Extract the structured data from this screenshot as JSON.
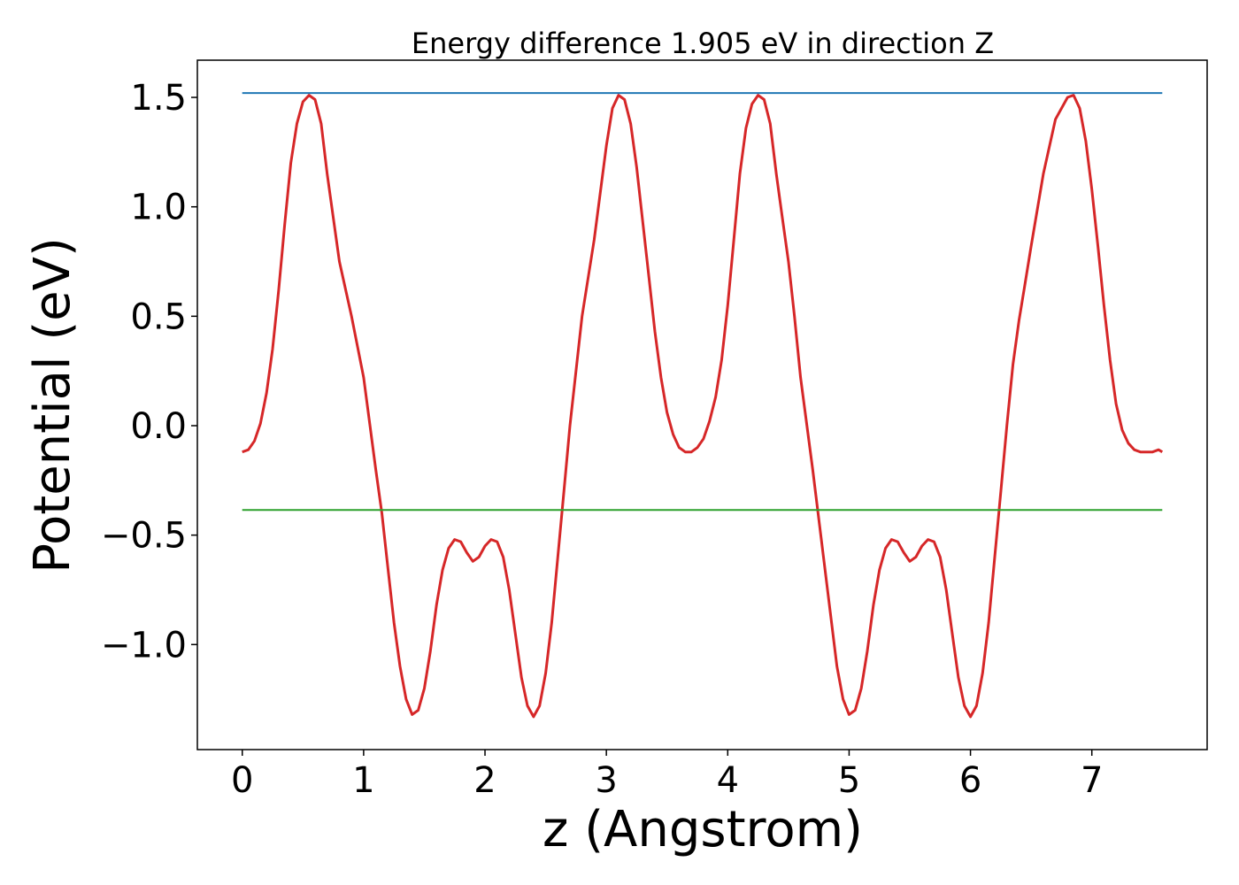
{
  "chart_data": {
    "type": "line",
    "title": "Energy difference 1.905 eV in direction Z",
    "xlabel": "z (Angstrom)",
    "ylabel": "Potential (eV)",
    "xlim": [
      -0.37,
      7.95
    ],
    "ylim": [
      -1.48,
      1.67
    ],
    "xticks": [
      0,
      1,
      2,
      3,
      4,
      5,
      6,
      7
    ],
    "yticks": [
      -1.0,
      -0.5,
      0.0,
      0.5,
      1.0,
      1.5
    ],
    "ytick_labels": [
      "−1.0",
      "−0.5",
      "0.0",
      "0.5",
      "1.0",
      "1.5"
    ],
    "grid": false,
    "series": [
      {
        "color": "#d62728",
        "x": [
          0,
          0.05,
          0.1,
          0.15,
          0.2,
          0.25,
          0.3,
          0.35,
          0.4,
          0.45,
          0.5,
          0.55,
          0.6,
          0.65,
          0.7,
          0.75,
          0.8,
          0.9,
          1.0,
          1.1,
          1.15,
          1.2,
          1.25,
          1.3,
          1.35,
          1.4,
          1.45,
          1.5,
          1.55,
          1.6,
          1.65,
          1.7,
          1.75,
          1.8,
          1.85,
          1.9,
          1.95,
          2.0,
          2.05,
          2.1,
          2.15,
          2.2,
          2.25,
          2.3,
          2.35,
          2.4,
          2.45,
          2.5,
          2.55,
          2.6,
          2.65,
          2.7,
          2.8,
          2.9,
          3.0,
          3.05,
          3.1,
          3.15,
          3.2,
          3.25,
          3.3,
          3.35,
          3.4,
          3.45,
          3.5,
          3.55,
          3.6,
          3.65,
          3.7,
          3.75,
          3.8,
          3.85,
          3.9,
          3.95,
          4.0,
          4.05,
          4.1,
          4.15,
          4.2,
          4.25,
          4.3,
          4.35,
          4.4,
          4.45,
          4.5,
          4.55,
          4.6,
          4.7,
          4.8,
          4.9,
          4.95,
          5.0,
          5.05,
          5.1,
          5.15,
          5.2,
          5.25,
          5.3,
          5.35,
          5.4,
          5.45,
          5.5,
          5.55,
          5.6,
          5.65,
          5.7,
          5.75,
          5.8,
          5.85,
          5.9,
          5.95,
          6.0,
          6.05,
          6.1,
          6.15,
          6.2,
          6.25,
          6.3,
          6.35,
          6.4,
          6.45,
          6.5,
          6.6,
          6.7,
          6.8,
          6.85,
          6.9,
          6.95,
          7.0,
          7.05,
          7.1,
          7.15,
          7.2,
          7.25,
          7.3,
          7.35,
          7.4,
          7.45,
          7.5,
          7.55,
          7.58
        ],
        "y": [
          -0.12,
          -0.11,
          -0.07,
          0.01,
          0.15,
          0.35,
          0.62,
          0.92,
          1.2,
          1.38,
          1.48,
          1.51,
          1.49,
          1.38,
          1.15,
          0.95,
          0.75,
          0.5,
          0.22,
          -0.2,
          -0.4,
          -0.65,
          -0.9,
          -1.1,
          -1.25,
          -1.32,
          -1.3,
          -1.2,
          -1.03,
          -0.82,
          -0.66,
          -0.56,
          -0.52,
          -0.53,
          -0.58,
          -0.62,
          -0.6,
          -0.55,
          -0.52,
          -0.53,
          -0.6,
          -0.75,
          -0.95,
          -1.15,
          -1.28,
          -1.33,
          -1.28,
          -1.13,
          -0.9,
          -0.6,
          -0.3,
          0.0,
          0.5,
          0.85,
          1.28,
          1.45,
          1.51,
          1.49,
          1.38,
          1.18,
          0.93,
          0.68,
          0.43,
          0.22,
          0.06,
          -0.04,
          -0.1,
          -0.12,
          -0.12,
          -0.1,
          -0.06,
          0.02,
          0.13,
          0.3,
          0.55,
          0.85,
          1.15,
          1.36,
          1.47,
          1.51,
          1.49,
          1.38,
          1.15,
          0.95,
          0.75,
          0.5,
          0.22,
          -0.2,
          -0.65,
          -1.1,
          -1.25,
          -1.32,
          -1.3,
          -1.2,
          -1.03,
          -0.82,
          -0.66,
          -0.56,
          -0.52,
          -0.53,
          -0.58,
          -0.62,
          -0.6,
          -0.55,
          -0.52,
          -0.53,
          -0.6,
          -0.75,
          -0.95,
          -1.15,
          -1.28,
          -1.33,
          -1.28,
          -1.13,
          -0.9,
          -0.6,
          -0.3,
          0.0,
          0.28,
          0.48,
          0.65,
          0.82,
          1.15,
          1.4,
          1.5,
          1.51,
          1.45,
          1.3,
          1.08,
          0.82,
          0.55,
          0.3,
          0.1,
          -0.02,
          -0.08,
          -0.11,
          -0.12,
          -0.12,
          -0.12,
          -0.11,
          -0.12
        ]
      },
      {
        "color": "#1f77b4",
        "x": [
          0,
          7.58
        ],
        "y": [
          1.52,
          1.52
        ]
      },
      {
        "color": "#2ca02c",
        "x": [
          0,
          7.58
        ],
        "y": [
          -0.385,
          -0.385
        ]
      }
    ]
  }
}
